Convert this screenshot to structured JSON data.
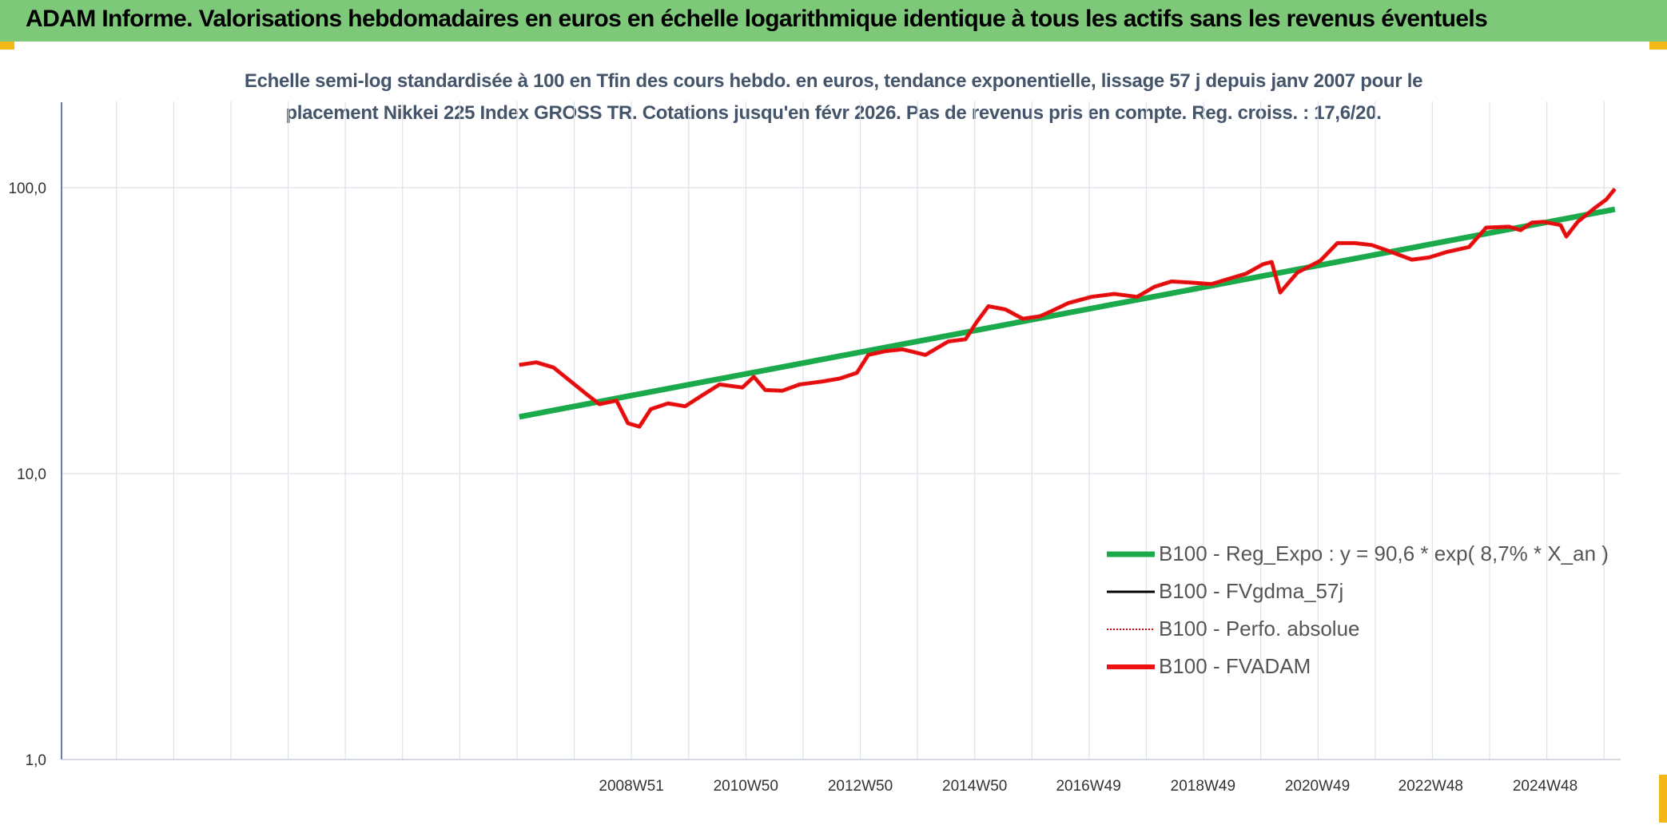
{
  "header": {
    "title": "ADAM Informe. Valorisations hebdomadaires en euros en échelle logarithmique identique à tous les actifs sans les revenus éventuels"
  },
  "colors": {
    "header_bg": "#7ec87a",
    "accent_corner": "#f3b818",
    "reg": "#1aaa4b",
    "fvgdma": "#000000",
    "perfo": "#e00000",
    "fvadam": "#ee1111",
    "subtitle": "#44546a"
  },
  "chart_data": {
    "type": "line",
    "title_line1": "Echelle semi-log standardisée à 100 en Tfin des cours hebdo. en euros, tendance exponentielle, lissage 57 j depuis janv 2007 pour le",
    "title_line2": "placement Nikkei 225 Index GROSS TR. Cotations jusqu'en févr 2026. Pas de revenus pris en compte. Reg. croiss. : 17,6/20.",
    "y_scale": "log",
    "ylim": [
      1,
      200
    ],
    "y_ticks": [
      "1,0",
      "10,0",
      "100,0"
    ],
    "y_tick_values": [
      1,
      10,
      100
    ],
    "xlim": [
      1999.0,
      2026.25
    ],
    "x_ticks": [
      "2008W51",
      "2010W50",
      "2012W50",
      "2014W50",
      "2016W49",
      "2018W49",
      "2020W49",
      "2022W48",
      "2024W48"
    ],
    "x_tick_values": [
      2008.96,
      2010.96,
      2012.96,
      2014.96,
      2016.95,
      2018.95,
      2020.95,
      2022.93,
      2024.93
    ],
    "grid": true,
    "legend_position": "bottom-right",
    "series": [
      {
        "name": "B100 - Reg_Expo : y = 90,6 * exp( 8,7% *  X_an )",
        "kind": "regression",
        "x": [
          2007.0,
          2026.15
        ],
        "y": [
          15.8,
          84.0
        ]
      },
      {
        "name": "B100 - FVgdma_57j",
        "kind": "smooth"
      },
      {
        "name": "B100 - Perfo. absolue",
        "kind": "dotted"
      },
      {
        "name": "B100 - FVADAM",
        "kind": "main",
        "x": [
          2007.0,
          2007.3,
          2007.6,
          2007.9,
          2008.2,
          2008.4,
          2008.7,
          2008.9,
          2009.1,
          2009.3,
          2009.6,
          2009.9,
          2010.2,
          2010.5,
          2010.9,
          2011.1,
          2011.3,
          2011.6,
          2011.9,
          2012.3,
          2012.6,
          2012.9,
          2013.1,
          2013.4,
          2013.7,
          2014.1,
          2014.5,
          2014.8,
          2015.0,
          2015.2,
          2015.5,
          2015.8,
          2016.1,
          2016.3,
          2016.6,
          2017.0,
          2017.4,
          2017.8,
          2018.1,
          2018.4,
          2018.8,
          2019.1,
          2019.4,
          2019.7,
          2020.0,
          2020.15,
          2020.3,
          2020.6,
          2021.0,
          2021.3,
          2021.6,
          2021.9,
          2022.2,
          2022.6,
          2022.9,
          2023.2,
          2023.6,
          2023.9,
          2024.3,
          2024.5,
          2024.7,
          2024.9,
          2025.2,
          2025.3,
          2025.5,
          2025.8,
          2026.0,
          2026.15
        ],
        "y": [
          24.0,
          24.5,
          23.5,
          21.0,
          18.8,
          17.5,
          18.0,
          15.0,
          14.6,
          16.8,
          17.6,
          17.2,
          18.8,
          20.5,
          20.0,
          21.8,
          19.6,
          19.5,
          20.5,
          21.0,
          21.5,
          22.5,
          26.0,
          26.8,
          27.2,
          26.0,
          29.0,
          29.5,
          34.0,
          38.5,
          37.5,
          34.8,
          35.5,
          37.0,
          39.5,
          41.5,
          42.5,
          41.5,
          45.0,
          47.0,
          46.5,
          46.0,
          48.0,
          50.0,
          54.0,
          55.0,
          43.0,
          50.5,
          55.5,
          64.0,
          64.0,
          63.0,
          60.0,
          56.0,
          57.0,
          59.5,
          62.0,
          72.5,
          73.0,
          71.0,
          75.5,
          76.0,
          74.0,
          67.5,
          76.0,
          85.0,
          91.0,
          99.0
        ]
      }
    ]
  }
}
